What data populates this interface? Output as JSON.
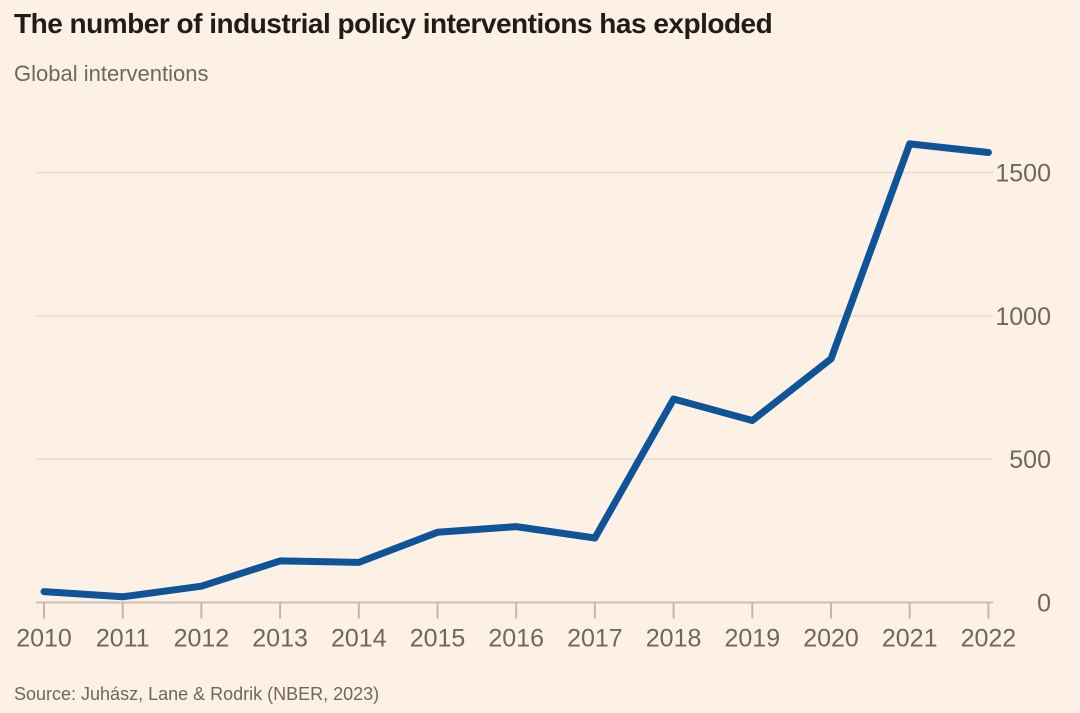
{
  "header": {
    "title": "The number of industrial policy interventions has exploded",
    "subtitle": "Global interventions"
  },
  "footer": {
    "source": "Source: Juhász, Lane & Rodrik (NBER, 2023)"
  },
  "colors": {
    "background": "#fdf1e5",
    "line": "#0F5499",
    "grid": "#ecdfd0",
    "axis": "#cdc0b2",
    "tick": "#c3b7a9",
    "label": "#6f675f",
    "title": "#1f1c1a",
    "muted": "#6f675f"
  },
  "chart_data": {
    "type": "line",
    "title": "The number of industrial policy interventions has exploded",
    "subtitle": "Global interventions",
    "source": "Source: Juhász, Lane & Rodrik (NBER, 2023)",
    "series_name": "Global interventions",
    "x": [
      2010,
      2011,
      2012,
      2013,
      2014,
      2015,
      2016,
      2017,
      2018,
      2019,
      2020,
      2021,
      2022
    ],
    "values": [
      38,
      20,
      57,
      145,
      140,
      245,
      265,
      225,
      710,
      635,
      850,
      1600,
      1570
    ],
    "xlabel": "",
    "ylabel": "",
    "ylim": [
      0,
      1650
    ],
    "yticks": [
      0,
      500,
      1000,
      1500
    ],
    "grid": "horizontal",
    "y_axis_side": "right",
    "legend": "none",
    "line_color": "#0F5499"
  }
}
